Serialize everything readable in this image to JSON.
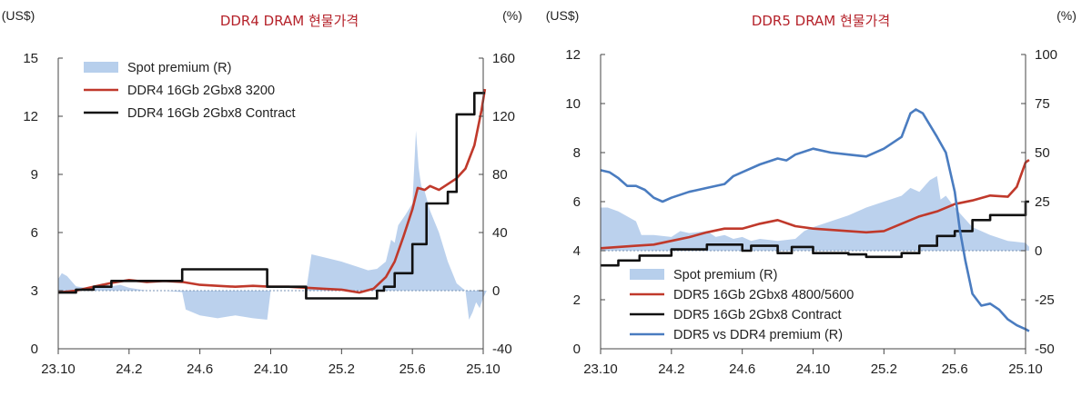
{
  "colors": {
    "spot_fill": "#b7cfec",
    "spot_line": "#c0392b",
    "contract_line": "#111111",
    "premium_line": "#4a7cc0",
    "axis": "#444444",
    "zero": "#7a93b5",
    "title": "#b5222a"
  },
  "chart_data": [
    {
      "type": "line",
      "title": "DDR4 DRAM 현물가격",
      "ylabel_left": "(US$)",
      "ylabel_right": "(%)",
      "xlim": [
        0,
        24
      ],
      "ylim_left": [
        0,
        15
      ],
      "ylim_right": [
        -40,
        160
      ],
      "yticks_left": [
        "0",
        "3",
        "6",
        "9",
        "12",
        "15"
      ],
      "yticks_right": [
        "-40",
        "0",
        "40",
        "80",
        "120",
        "160"
      ],
      "xticks": [
        {
          "label": "23.10",
          "x": 0
        },
        {
          "label": "24.2",
          "x": 4
        },
        {
          "label": "24.6",
          "x": 8
        },
        {
          "label": "24.10",
          "x": 12
        },
        {
          "label": "25.2",
          "x": 16
        },
        {
          "label": "25.6",
          "x": 20
        },
        {
          "label": "25.10",
          "x": 24
        }
      ],
      "legend": [
        "Spot premium (R)",
        "DDR4 16Gb 2Gbx8 3200",
        "DDR4 16Gb 2Gbx8 Contract"
      ],
      "series": [
        {
          "name": "Spot premium (R)",
          "kind": "area",
          "axis": "right",
          "points": [
            [
              0,
              8
            ],
            [
              0.2,
              12
            ],
            [
              0.5,
              10
            ],
            [
              1,
              3
            ],
            [
              1.5,
              2
            ],
            [
              2,
              3
            ],
            [
              2.5,
              5
            ],
            [
              3,
              3
            ],
            [
              3.5,
              4
            ],
            [
              4,
              2
            ],
            [
              5,
              0
            ],
            [
              6,
              0
            ],
            [
              7,
              -1
            ],
            [
              7.2,
              -13
            ],
            [
              8,
              -17
            ],
            [
              9,
              -19
            ],
            [
              10,
              -17
            ],
            [
              11,
              -19
            ],
            [
              11.8,
              -20
            ],
            [
              12,
              0
            ],
            [
              13,
              0
            ],
            [
              14,
              0
            ],
            [
              14.3,
              25
            ],
            [
              15,
              23
            ],
            [
              16,
              20
            ],
            [
              17,
              16
            ],
            [
              17.5,
              14
            ],
            [
              18,
              15
            ],
            [
              18.5,
              20
            ],
            [
              18.8,
              35
            ],
            [
              19,
              33
            ],
            [
              19.2,
              45
            ],
            [
              19.6,
              52
            ],
            [
              20,
              60
            ],
            [
              20.2,
              110
            ],
            [
              20.35,
              85
            ],
            [
              20.5,
              72
            ],
            [
              20.7,
              68
            ],
            [
              21,
              55
            ],
            [
              21.5,
              40
            ],
            [
              22,
              20
            ],
            [
              22.5,
              5
            ],
            [
              23,
              0
            ],
            [
              23.2,
              -20
            ],
            [
              23.4,
              -15
            ],
            [
              23.6,
              -8
            ],
            [
              23.8,
              -12
            ],
            [
              24,
              -5
            ],
            [
              24.2,
              0
            ]
          ]
        },
        {
          "name": "DDR4 16Gb 2Gbx8 3200",
          "kind": "line",
          "axis": "left",
          "points": [
            [
              0,
              2.9
            ],
            [
              1,
              3.0
            ],
            [
              2,
              3.2
            ],
            [
              3,
              3.4
            ],
            [
              4,
              3.55
            ],
            [
              5,
              3.45
            ],
            [
              6,
              3.5
            ],
            [
              7,
              3.45
            ],
            [
              8,
              3.3
            ],
            [
              9,
              3.25
            ],
            [
              10,
              3.2
            ],
            [
              11,
              3.25
            ],
            [
              12,
              3.2
            ],
            [
              13,
              3.2
            ],
            [
              14,
              3.15
            ],
            [
              15,
              3.1
            ],
            [
              16,
              3.05
            ],
            [
              17,
              2.9
            ],
            [
              17.8,
              3.1
            ],
            [
              18.5,
              3.7
            ],
            [
              19,
              4.5
            ],
            [
              19.5,
              5.8
            ],
            [
              20,
              7.2
            ],
            [
              20.3,
              8.3
            ],
            [
              20.7,
              8.2
            ],
            [
              21,
              8.4
            ],
            [
              21.5,
              8.2
            ],
            [
              22,
              8.5
            ],
            [
              22.5,
              8.8
            ],
            [
              23,
              9.3
            ],
            [
              23.5,
              10.5
            ],
            [
              23.9,
              12.3
            ],
            [
              24.1,
              13.4
            ]
          ]
        },
        {
          "name": "DDR4 16Gb 2Gbx8 Contract",
          "kind": "step",
          "axis": "left",
          "points": [
            [
              0,
              2.9
            ],
            [
              1,
              3.05
            ],
            [
              2,
              3.2
            ],
            [
              3,
              3.5
            ],
            [
              7,
              4.1
            ],
            [
              11.8,
              3.2
            ],
            [
              14,
              2.6
            ],
            [
              18,
              3.0
            ],
            [
              18.4,
              3.2
            ],
            [
              19,
              3.9
            ],
            [
              20,
              5.4
            ],
            [
              20.8,
              7.5
            ],
            [
              22,
              8.1
            ],
            [
              22.5,
              12.1
            ],
            [
              23.5,
              13.2
            ],
            [
              24.1,
              13.2
            ]
          ]
        }
      ]
    },
    {
      "type": "line",
      "title": "DDR5 DRAM 현물가격",
      "ylabel_left": "(US$)",
      "ylabel_right": "(%)",
      "xlim": [
        0,
        24
      ],
      "ylim_left": [
        0,
        12
      ],
      "ylim_right": [
        -50,
        100
      ],
      "yticks_left": [
        "0",
        "2",
        "4",
        "6",
        "8",
        "10",
        "12"
      ],
      "yticks_right": [
        "-50",
        "-25",
        "0",
        "25",
        "50",
        "75",
        "100"
      ],
      "xticks": [
        {
          "label": "23.10",
          "x": 0
        },
        {
          "label": "24.2",
          "x": 4
        },
        {
          "label": "24.6",
          "x": 8
        },
        {
          "label": "24.10",
          "x": 12
        },
        {
          "label": "25.2",
          "x": 16
        },
        {
          "label": "25.6",
          "x": 20
        },
        {
          "label": "25.10",
          "x": 24
        }
      ],
      "legend": [
        "Spot premium (R)",
        "DDR5 16Gb 2Gbx8 4800/5600",
        "DDR5 16Gb 2Gbx8 Contract",
        "DDR5 vs DDR4 premium (R)"
      ],
      "series": [
        {
          "name": "Spot premium (R)",
          "kind": "area",
          "axis": "right",
          "points": [
            [
              0,
              22
            ],
            [
              0.4,
              22
            ],
            [
              1,
              20
            ],
            [
              2,
              15
            ],
            [
              2.3,
              8
            ],
            [
              3,
              8
            ],
            [
              4,
              7
            ],
            [
              4.5,
              10
            ],
            [
              5,
              9
            ],
            [
              6,
              10
            ],
            [
              6.5,
              7
            ],
            [
              7,
              8
            ],
            [
              7.5,
              6
            ],
            [
              8,
              7
            ],
            [
              8.5,
              5
            ],
            [
              9,
              6
            ],
            [
              10,
              5
            ],
            [
              11,
              6
            ],
            [
              11.5,
              10
            ],
            [
              12,
              12
            ],
            [
              13,
              15
            ],
            [
              14,
              18
            ],
            [
              15,
              22
            ],
            [
              16,
              25
            ],
            [
              17,
              28
            ],
            [
              17.5,
              32
            ],
            [
              18,
              30
            ],
            [
              18.6,
              36
            ],
            [
              19,
              38
            ],
            [
              19.2,
              26
            ],
            [
              19.5,
              28
            ],
            [
              20,
              22
            ],
            [
              21,
              12
            ],
            [
              22,
              8
            ],
            [
              23,
              5
            ],
            [
              24,
              4
            ],
            [
              24.2,
              2
            ]
          ]
        },
        {
          "name": "DDR5 16Gb 2Gbx8 4800/5600",
          "kind": "line",
          "axis": "left",
          "points": [
            [
              0,
              4.1
            ],
            [
              1,
              4.15
            ],
            [
              2,
              4.2
            ],
            [
              3,
              4.25
            ],
            [
              4,
              4.4
            ],
            [
              5,
              4.55
            ],
            [
              6,
              4.75
            ],
            [
              7,
              4.9
            ],
            [
              8,
              4.9
            ],
            [
              9,
              5.1
            ],
            [
              10,
              5.25
            ],
            [
              11,
              5.0
            ],
            [
              12,
              4.9
            ],
            [
              13,
              4.85
            ],
            [
              14,
              4.8
            ],
            [
              15,
              4.75
            ],
            [
              16,
              4.8
            ],
            [
              17,
              5.1
            ],
            [
              18,
              5.4
            ],
            [
              19,
              5.6
            ],
            [
              20,
              5.9
            ],
            [
              21,
              6.05
            ],
            [
              22,
              6.25
            ],
            [
              23,
              6.2
            ],
            [
              23.5,
              6.6
            ],
            [
              24,
              7.6
            ],
            [
              24.2,
              7.7
            ]
          ]
        },
        {
          "name": "DDR5 16Gb 2Gbx8 Contract",
          "kind": "step",
          "axis": "left",
          "points": [
            [
              0,
              3.4
            ],
            [
              1,
              3.6
            ],
            [
              2.2,
              3.8
            ],
            [
              4,
              4.05
            ],
            [
              6,
              4.25
            ],
            [
              8,
              4.0
            ],
            [
              8.5,
              4.2
            ],
            [
              10,
              3.9
            ],
            [
              10.8,
              4.15
            ],
            [
              12,
              3.9
            ],
            [
              14,
              3.85
            ],
            [
              15,
              3.75
            ],
            [
              17,
              3.9
            ],
            [
              18,
              4.2
            ],
            [
              19,
              4.6
            ],
            [
              20,
              4.8
            ],
            [
              21,
              5.25
            ],
            [
              22,
              5.45
            ],
            [
              24,
              6.0
            ],
            [
              24.2,
              6.0
            ]
          ]
        },
        {
          "name": "DDR5 vs DDR4 premium (R)",
          "kind": "line",
          "axis": "right",
          "points": [
            [
              0,
              41
            ],
            [
              0.5,
              40
            ],
            [
              1,
              37
            ],
            [
              1.5,
              33
            ],
            [
              2,
              33
            ],
            [
              2.5,
              31
            ],
            [
              3,
              27
            ],
            [
              3.5,
              25
            ],
            [
              4,
              27
            ],
            [
              5,
              30
            ],
            [
              6,
              32
            ],
            [
              7,
              34
            ],
            [
              7.5,
              38
            ],
            [
              8,
              40
            ],
            [
              9,
              44
            ],
            [
              10,
              47
            ],
            [
              10.5,
              46
            ],
            [
              11,
              49
            ],
            [
              12,
              52
            ],
            [
              13,
              50
            ],
            [
              14,
              49
            ],
            [
              15,
              48
            ],
            [
              16,
              52
            ],
            [
              17,
              58
            ],
            [
              17.5,
              70
            ],
            [
              17.8,
              72
            ],
            [
              18.2,
              70
            ],
            [
              19,
              58
            ],
            [
              19.5,
              50
            ],
            [
              20,
              30
            ],
            [
              20.3,
              10
            ],
            [
              20.6,
              -5
            ],
            [
              21,
              -22
            ],
            [
              21.5,
              -28
            ],
            [
              22,
              -27
            ],
            [
              22.5,
              -30
            ],
            [
              23,
              -35
            ],
            [
              23.5,
              -38
            ],
            [
              24,
              -40
            ],
            [
              24.2,
              -41
            ]
          ]
        }
      ]
    }
  ]
}
